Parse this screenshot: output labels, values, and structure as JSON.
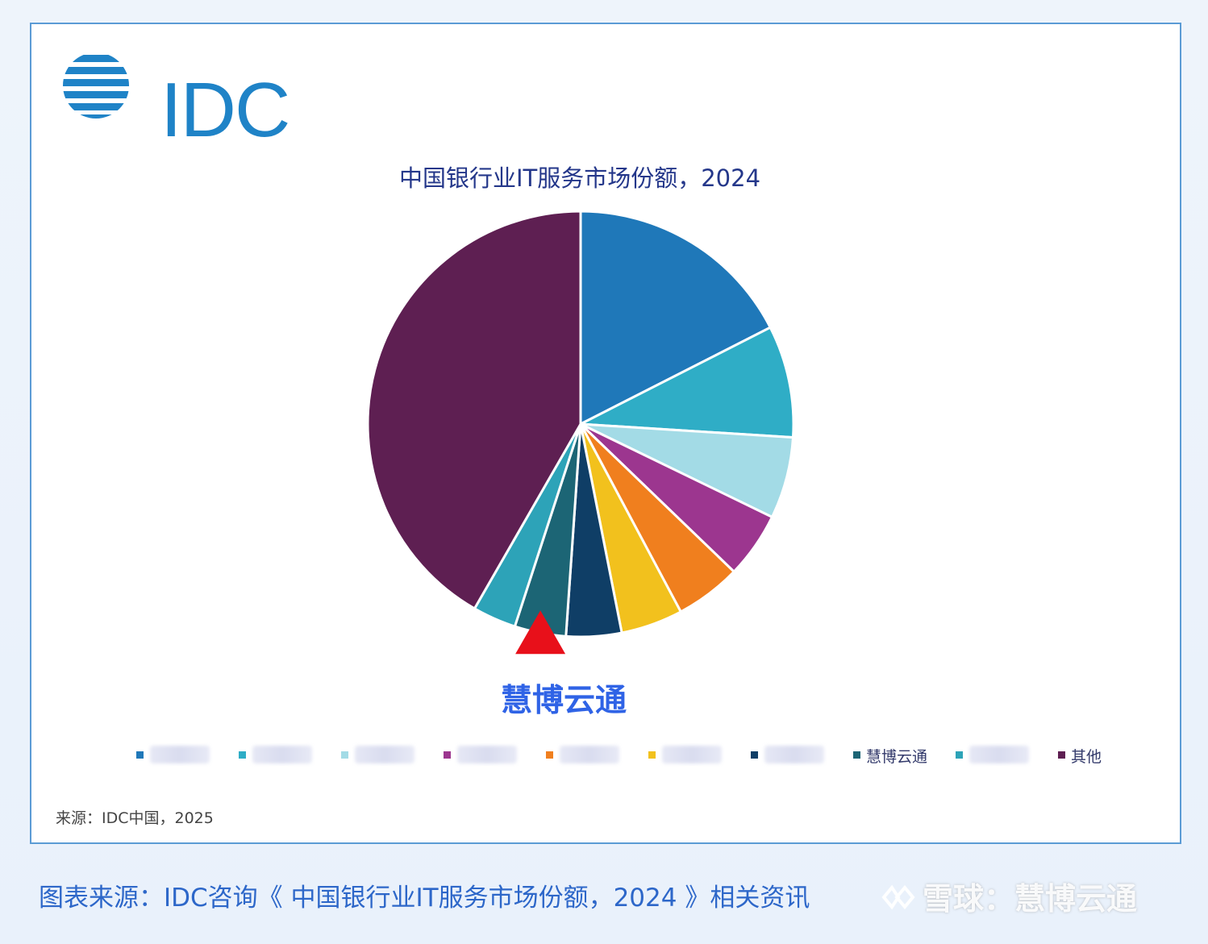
{
  "logo": {
    "text": "IDC",
    "color": "#1f83c7"
  },
  "caption": "图表来源：IDC咨询《 中国银行业IT服务市场份额，2024 》相关资讯",
  "watermark": "雪球：慧博云通",
  "callout": {
    "label": "慧博云通",
    "color": "#2f63e6",
    "marker_color": "#e8101a"
  },
  "source": "来源：IDC中国，2025",
  "chart_data": {
    "type": "pie",
    "title": "中国银行业IT服务市场份额，2024",
    "unit": "%",
    "slices": [
      {
        "label": "",
        "value": 17.5,
        "color": "#1f78b9",
        "label_visible": false
      },
      {
        "label": "",
        "value": 8.5,
        "color": "#2fadc6",
        "label_visible": false
      },
      {
        "label": "",
        "value": 6.2,
        "color": "#a3dbe6",
        "label_visible": false
      },
      {
        "label": "",
        "value": 5.0,
        "color": "#9c368f",
        "label_visible": false
      },
      {
        "label": "",
        "value": 5.0,
        "color": "#f07f1e",
        "label_visible": false
      },
      {
        "label": "",
        "value": 4.7,
        "color": "#f2c11d",
        "label_visible": false
      },
      {
        "label": "",
        "value": 4.2,
        "color": "#0f3e66",
        "label_visible": false
      },
      {
        "label": "慧博云通",
        "value": 3.9,
        "color": "#1c6575",
        "label_visible": true
      },
      {
        "label": "",
        "value": 3.3,
        "color": "#2da3b8",
        "label_visible": false
      },
      {
        "label": "其他",
        "value": 41.7,
        "color": "#5e1f52",
        "label_visible": true
      }
    ],
    "start": "12 o'clock",
    "direction": "clockwise",
    "legend_position": "bottom"
  }
}
